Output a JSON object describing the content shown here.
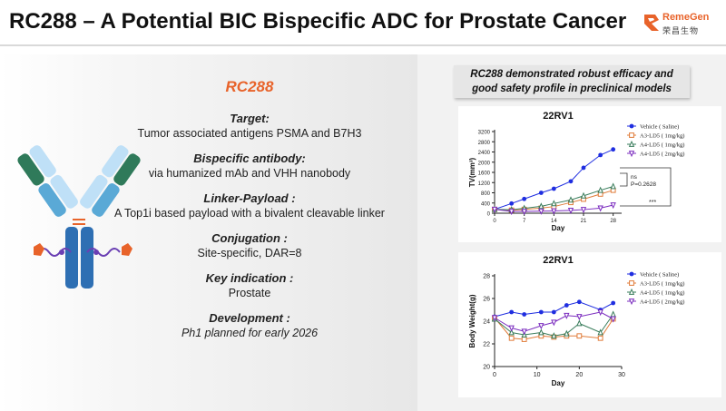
{
  "header": {
    "title": "RC288 – A Potential BIC Bispecific ADC for Prostate Cancer"
  },
  "logo": {
    "name": "RemeGen",
    "cn": "荣昌生物"
  },
  "left": {
    "drug_name": "RC288",
    "sections": [
      {
        "heading": "Target:",
        "text": "Tumor associated antigens PSMA and B7H3"
      },
      {
        "heading": "Bispecific antibody:",
        "text": "via humanized mAb and VHH nanobody"
      },
      {
        "heading": "Linker-Payload :",
        "text": "A Top1i based payload with a bivalent cleavable linker"
      },
      {
        "heading": "Conjugation :",
        "text": "Site-specific, DAR=8"
      },
      {
        "heading": "Key indication :",
        "text": "Prostate"
      },
      {
        "heading": "Development :",
        "text": "Ph1 planned for early 2026"
      }
    ]
  },
  "callout": {
    "line1": "RC288 demonstrated robust efficacy and",
    "line2": "good safety profile in preclinical models"
  },
  "colors": {
    "accent": "#e8632a",
    "vehicle": "#1f2ee0",
    "a3": "#e07b39",
    "a4": "#3a7d5c",
    "a4_2": "#7b2cbf"
  },
  "chart_data": [
    {
      "type": "line",
      "title": "22RV1",
      "xlabel": "Day",
      "ylabel": "TV(mm³)",
      "xlim": [
        0,
        30
      ],
      "ylim": [
        0,
        3200
      ],
      "xticks": [
        "0",
        "7",
        "14",
        "21",
        "28"
      ],
      "yticks": [
        "0",
        "400",
        "800",
        "1200",
        "1600",
        "2000",
        "2400",
        "2800",
        "3200"
      ],
      "x": [
        0,
        4,
        7,
        11,
        14,
        18,
        21,
        25,
        28
      ],
      "series": [
        {
          "name": "Vehicle ( Saline)",
          "color": "#1f2ee0",
          "marker": "circle",
          "values": [
            150,
            380,
            560,
            800,
            960,
            1250,
            1780,
            2280,
            2500
          ]
        },
        {
          "name": "A3-LD5 ( 1mg/kg)",
          "color": "#e07b39",
          "marker": "square",
          "values": [
            150,
            120,
            150,
            200,
            260,
            420,
            550,
            750,
            900
          ]
        },
        {
          "name": "A4-LD5 ( 1mg/kg)",
          "color": "#3a7d5c",
          "marker": "triangle",
          "values": [
            150,
            140,
            190,
            270,
            380,
            520,
            680,
            900,
            1050
          ]
        },
        {
          "name": "A4-LD5 ( 2mg/kg)",
          "color": "#7b2cbf",
          "marker": "triangle-down",
          "values": [
            150,
            70,
            70,
            80,
            90,
            110,
            140,
            200,
            320
          ]
        }
      ],
      "annotations": [
        "ns",
        "P=0.2628",
        "***"
      ]
    },
    {
      "type": "line",
      "title": "22RV1",
      "xlabel": "Day",
      "ylabel": "Body Weight(g)",
      "xlim": [
        0,
        30
      ],
      "ylim": [
        20,
        28
      ],
      "xticks": [
        "0",
        "10",
        "20",
        "30"
      ],
      "yticks": [
        "20",
        "22",
        "24",
        "26",
        "28"
      ],
      "x": [
        0,
        4,
        7,
        11,
        14,
        17,
        20,
        25,
        28
      ],
      "series": [
        {
          "name": "Vehicle ( Saline)",
          "color": "#1f2ee0",
          "marker": "circle",
          "values": [
            24.4,
            24.8,
            24.6,
            24.8,
            24.8,
            25.4,
            25.7,
            25.0,
            25.6
          ]
        },
        {
          "name": "A3-LD5 ( 1mg/kg)",
          "color": "#e07b39",
          "marker": "square",
          "values": [
            24.3,
            22.5,
            22.4,
            22.7,
            22.6,
            22.7,
            22.7,
            22.5,
            24.2
          ]
        },
        {
          "name": "A4-LD5 ( 1mg/kg)",
          "color": "#3a7d5c",
          "marker": "triangle",
          "values": [
            24.2,
            23.0,
            22.8,
            23.0,
            22.7,
            22.9,
            23.8,
            23.0,
            24.6
          ]
        },
        {
          "name": "A4-LD5 ( 2mg/kg)",
          "color": "#7b2cbf",
          "marker": "triangle-down",
          "values": [
            24.3,
            23.4,
            23.1,
            23.6,
            23.9,
            24.5,
            24.4,
            24.8,
            24.2
          ]
        }
      ]
    }
  ]
}
